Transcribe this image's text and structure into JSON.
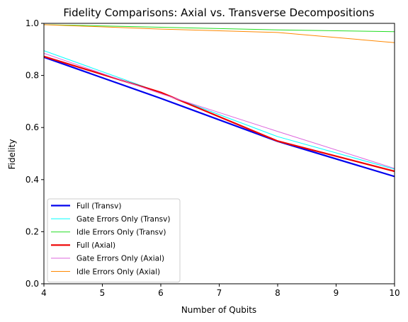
{
  "chart_data": {
    "type": "line",
    "title": "Fidelity Comparisons: Axial vs. Transverse Decompositions",
    "xlabel": "Number of Qubits",
    "ylabel": "Fidelity",
    "xlim": [
      4,
      10
    ],
    "ylim": [
      0.0,
      1.0
    ],
    "xticks": [
      4,
      5,
      6,
      7,
      8,
      9,
      10
    ],
    "yticks": [
      0.0,
      0.2,
      0.4,
      0.6,
      0.8,
      1.0
    ],
    "xtick_labels": [
      "4",
      "5",
      "6",
      "7",
      "8",
      "9",
      "10"
    ],
    "ytick_labels": [
      "0.0",
      "0.2",
      "0.4",
      "0.6",
      "0.8",
      "1.0"
    ],
    "grid": false,
    "legend_position": "lower-left",
    "x": [
      4,
      6,
      8,
      10
    ],
    "series": [
      {
        "name": "Full (Transv)",
        "color": "#0000ee",
        "width": 2.2,
        "values": [
          0.87,
          0.712,
          0.547,
          0.412
        ]
      },
      {
        "name": "Gate Errors Only (Transv)",
        "color": "#00ffff",
        "width": 1.0,
        "values": [
          0.895,
          0.734,
          0.565,
          0.44
        ]
      },
      {
        "name": "Idle Errors Only (Transv)",
        "color": "#22dd22",
        "width": 1.0,
        "values": [
          0.995,
          0.985,
          0.975,
          0.968
        ]
      },
      {
        "name": "Full (Axial)",
        "color": "#ee0000",
        "width": 2.2,
        "values": [
          0.873,
          0.735,
          0.548,
          0.432
        ]
      },
      {
        "name": "Gate Errors Only (Axial)",
        "color": "#dd66dd",
        "width": 1.0,
        "values": [
          0.885,
          0.73,
          0.585,
          0.443
        ]
      },
      {
        "name": "Idle Errors Only (Axial)",
        "color": "#ff8800",
        "width": 1.0,
        "values": [
          0.995,
          0.978,
          0.965,
          0.926
        ]
      }
    ]
  }
}
